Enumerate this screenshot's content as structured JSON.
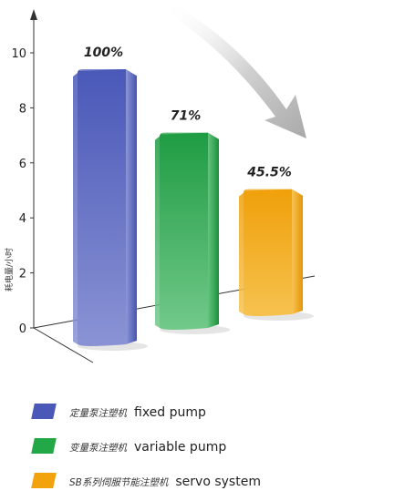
{
  "chart_data": {
    "type": "bar",
    "ylabel": "耗电量/小时",
    "ylim": [
      0,
      10
    ],
    "y_ticks": [
      0,
      2,
      4,
      6,
      8,
      10
    ],
    "categories": [
      "定量泵注塑机 fixed pump",
      "变量泵注塑机 variable pump",
      "SB系列伺服节能注塑机 servo system"
    ],
    "values": [
      10,
      7.1,
      4.55
    ],
    "data_labels": [
      "100%",
      "71%",
      "45.5%"
    ],
    "grid": false,
    "legend_position": "bottom",
    "colors": [
      "#5a67bf",
      "#22a84a",
      "#f2a20c"
    ]
  },
  "legend": {
    "items": [
      {
        "cn": "定量泵注塑机",
        "en": "fixed pump",
        "color": "#4a58b8"
      },
      {
        "cn": "变量泵注塑机",
        "en": "variable pump",
        "color": "#23a848"
      },
      {
        "cn": "SB系列伺服节能注塑机",
        "en": "servo system",
        "color": "#f2a20c"
      }
    ]
  }
}
